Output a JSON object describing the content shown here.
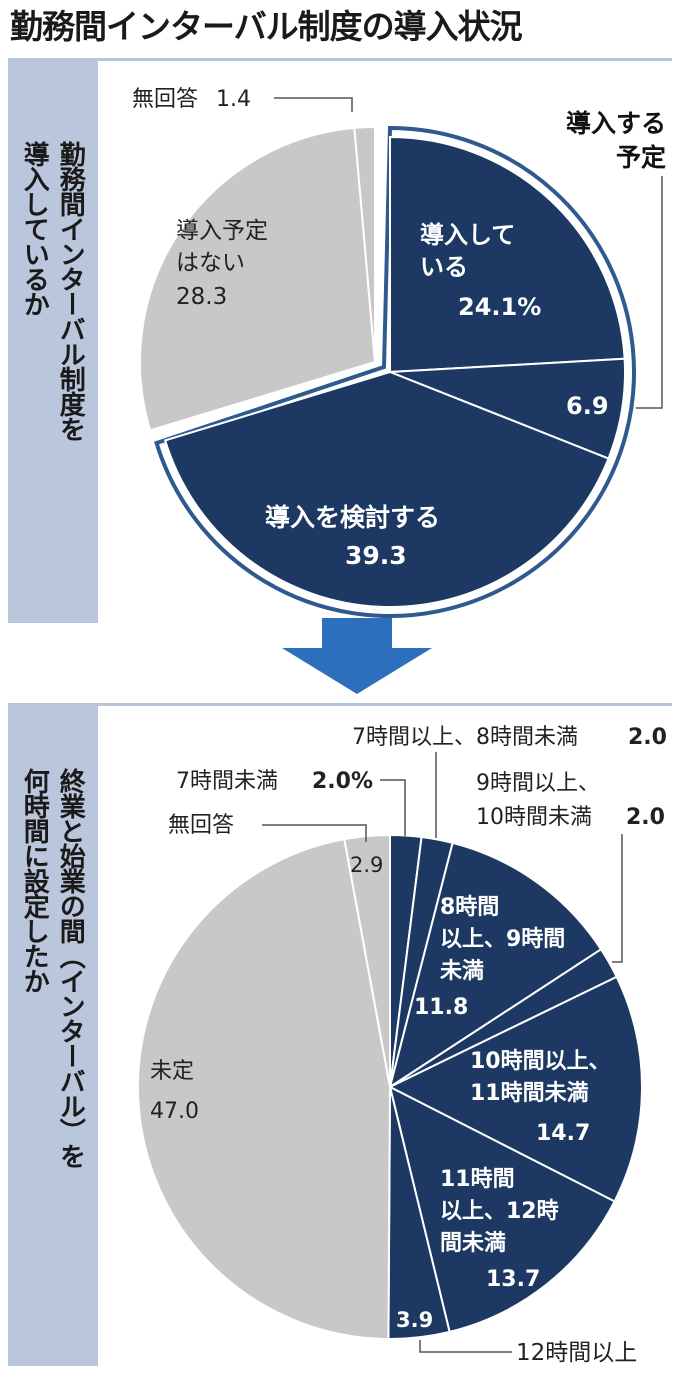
{
  "title": "勤務間インターバル制度の導入状況",
  "colors": {
    "dark": "#1d3963",
    "light": "#c8c8c8",
    "band": "#b9c6dc",
    "arrow": "#2e6fbd"
  },
  "panel1": {
    "question_col1": "勤務間インターバル制度を",
    "question_col2": "導入しているか",
    "plan_label_line1": "導入する",
    "plan_label_line2": "予定"
  },
  "panel2": {
    "question_col1": "終業と始業の間（インターバル）を",
    "question_col2": "何時間に設定したか"
  },
  "chart_data": [
    {
      "type": "pie",
      "title": "勤務間インターバル制度を導入しているか",
      "unit": "%",
      "slices": [
        {
          "label_lines": [
            "導入して",
            "いる"
          ],
          "value": 24.1,
          "value_text": "24.1%",
          "color": "#1d3963"
        },
        {
          "label_lines": [],
          "value": 6.9,
          "value_text": "6.9",
          "color": "#1d3963"
        },
        {
          "label_lines": [
            "導入を検討する"
          ],
          "value": 39.3,
          "value_text": "39.3",
          "color": "#1d3963"
        },
        {
          "label_lines": [
            "導入予定",
            "はない"
          ],
          "value": 28.3,
          "value_text": "28.3",
          "color": "#c8c8c8"
        },
        {
          "label_lines": [
            "無回答"
          ],
          "value": 1.4,
          "value_text": "1.4",
          "color": "#c8c8c8"
        }
      ],
      "grouped": {
        "label": "導入する予定",
        "slices": [
          1,
          2
        ]
      }
    },
    {
      "type": "pie",
      "title": "終業と始業の間（インターバル）を何時間に設定したか",
      "unit": "%",
      "slices": [
        {
          "label_lines": [
            "7時間未満"
          ],
          "value": 2.0,
          "value_text": "2.0%",
          "color": "#1d3963"
        },
        {
          "label_lines": [
            "7時間以上、8時間未満"
          ],
          "value": 2.0,
          "value_text": "2.0",
          "color": "#1d3963"
        },
        {
          "label_lines": [
            "8時間",
            "以上、9時間",
            "未満"
          ],
          "value": 11.8,
          "value_text": "11.8",
          "color": "#1d3963"
        },
        {
          "label_lines": [
            "9時間以上、",
            "10時間未満"
          ],
          "value": 2.0,
          "value_text": "2.0",
          "color": "#1d3963"
        },
        {
          "label_lines": [
            "10時間以上、",
            "11時間未満"
          ],
          "value": 14.7,
          "value_text": "14.7",
          "color": "#1d3963"
        },
        {
          "label_lines": [
            "11時間",
            "以上、12時",
            "間未満"
          ],
          "value": 13.7,
          "value_text": "13.7",
          "color": "#1d3963"
        },
        {
          "label_lines": [
            "12時間以上"
          ],
          "value": 3.9,
          "value_text": "3.9",
          "color": "#1d3963"
        },
        {
          "label_lines": [
            "未定"
          ],
          "value": 47.0,
          "value_text": "47.0",
          "color": "#c8c8c8"
        },
        {
          "label_lines": [
            "無回答"
          ],
          "value": 2.9,
          "value_text": "2.9",
          "color": "#c8c8c8"
        }
      ]
    }
  ]
}
